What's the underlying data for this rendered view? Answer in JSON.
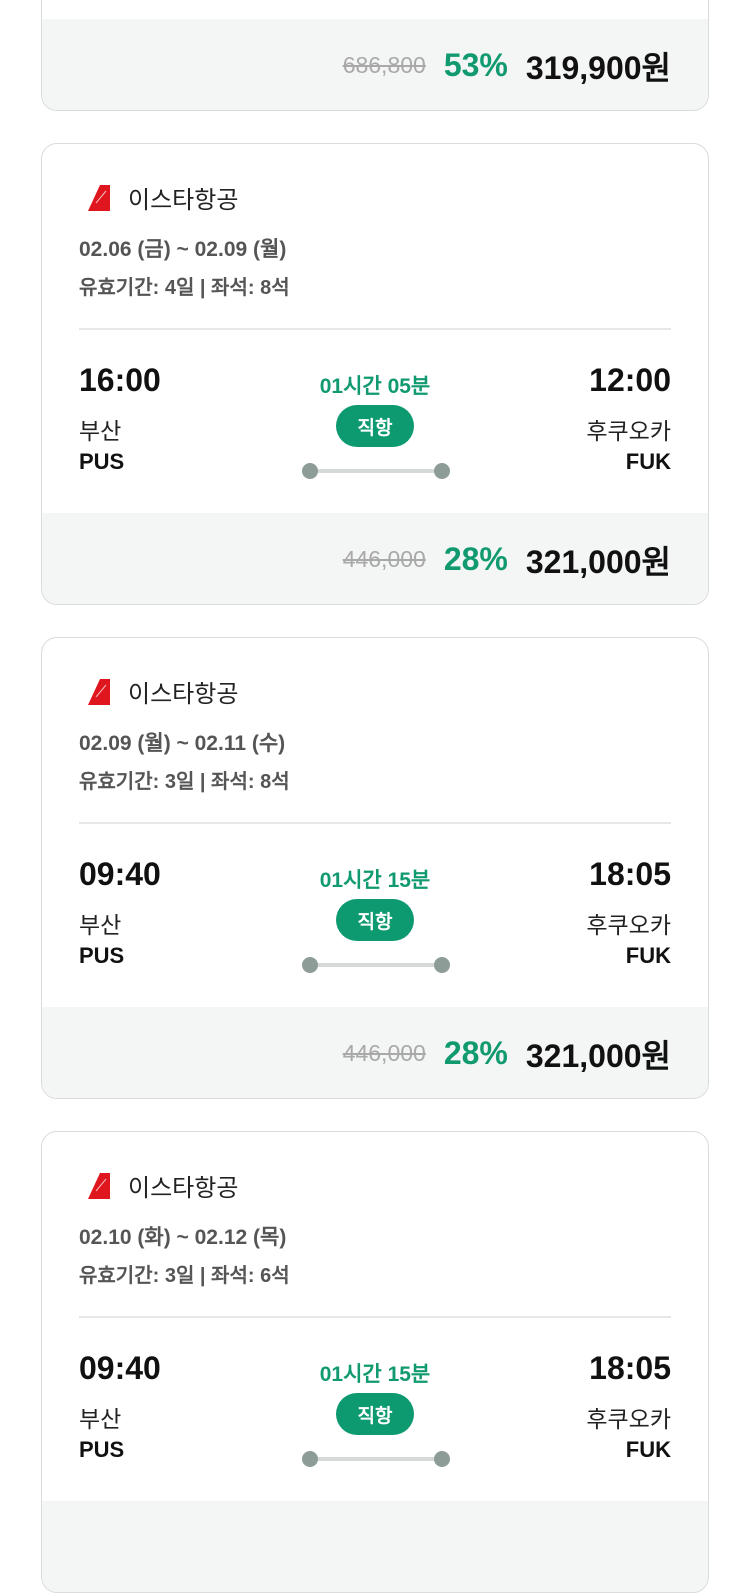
{
  "colors": {
    "accent": "#0e9a70",
    "logo": "#e0161f"
  },
  "cards": [
    {
      "original_price": "686,800",
      "discount": "53%",
      "price": "319,900원"
    },
    {
      "airline": "이스타항공",
      "dates": "02.06 (금) ~ 02.09 (월)",
      "validity": "유효기간: 4일 | 좌석: 8석",
      "dep_time": "16:00",
      "dep_city": "부산",
      "dep_code": "PUS",
      "duration": "01시간 05분",
      "badge": "직항",
      "arr_time": "12:00",
      "arr_city": "후쿠오카",
      "arr_code": "FUK",
      "original_price": "446,000",
      "discount": "28%",
      "price": "321,000원"
    },
    {
      "airline": "이스타항공",
      "dates": "02.09 (월) ~ 02.11 (수)",
      "validity": "유효기간: 3일 | 좌석: 8석",
      "dep_time": "09:40",
      "dep_city": "부산",
      "dep_code": "PUS",
      "duration": "01시간 15분",
      "badge": "직항",
      "arr_time": "18:05",
      "arr_city": "후쿠오카",
      "arr_code": "FUK",
      "original_price": "446,000",
      "discount": "28%",
      "price": "321,000원"
    },
    {
      "airline": "이스타항공",
      "dates": "02.10 (화) ~ 02.12 (목)",
      "validity": "유효기간: 3일 | 좌석: 6석",
      "dep_time": "09:40",
      "dep_city": "부산",
      "dep_code": "PUS",
      "duration": "01시간 15분",
      "badge": "직항",
      "arr_time": "18:05",
      "arr_city": "후쿠오카",
      "arr_code": "FUK"
    }
  ]
}
